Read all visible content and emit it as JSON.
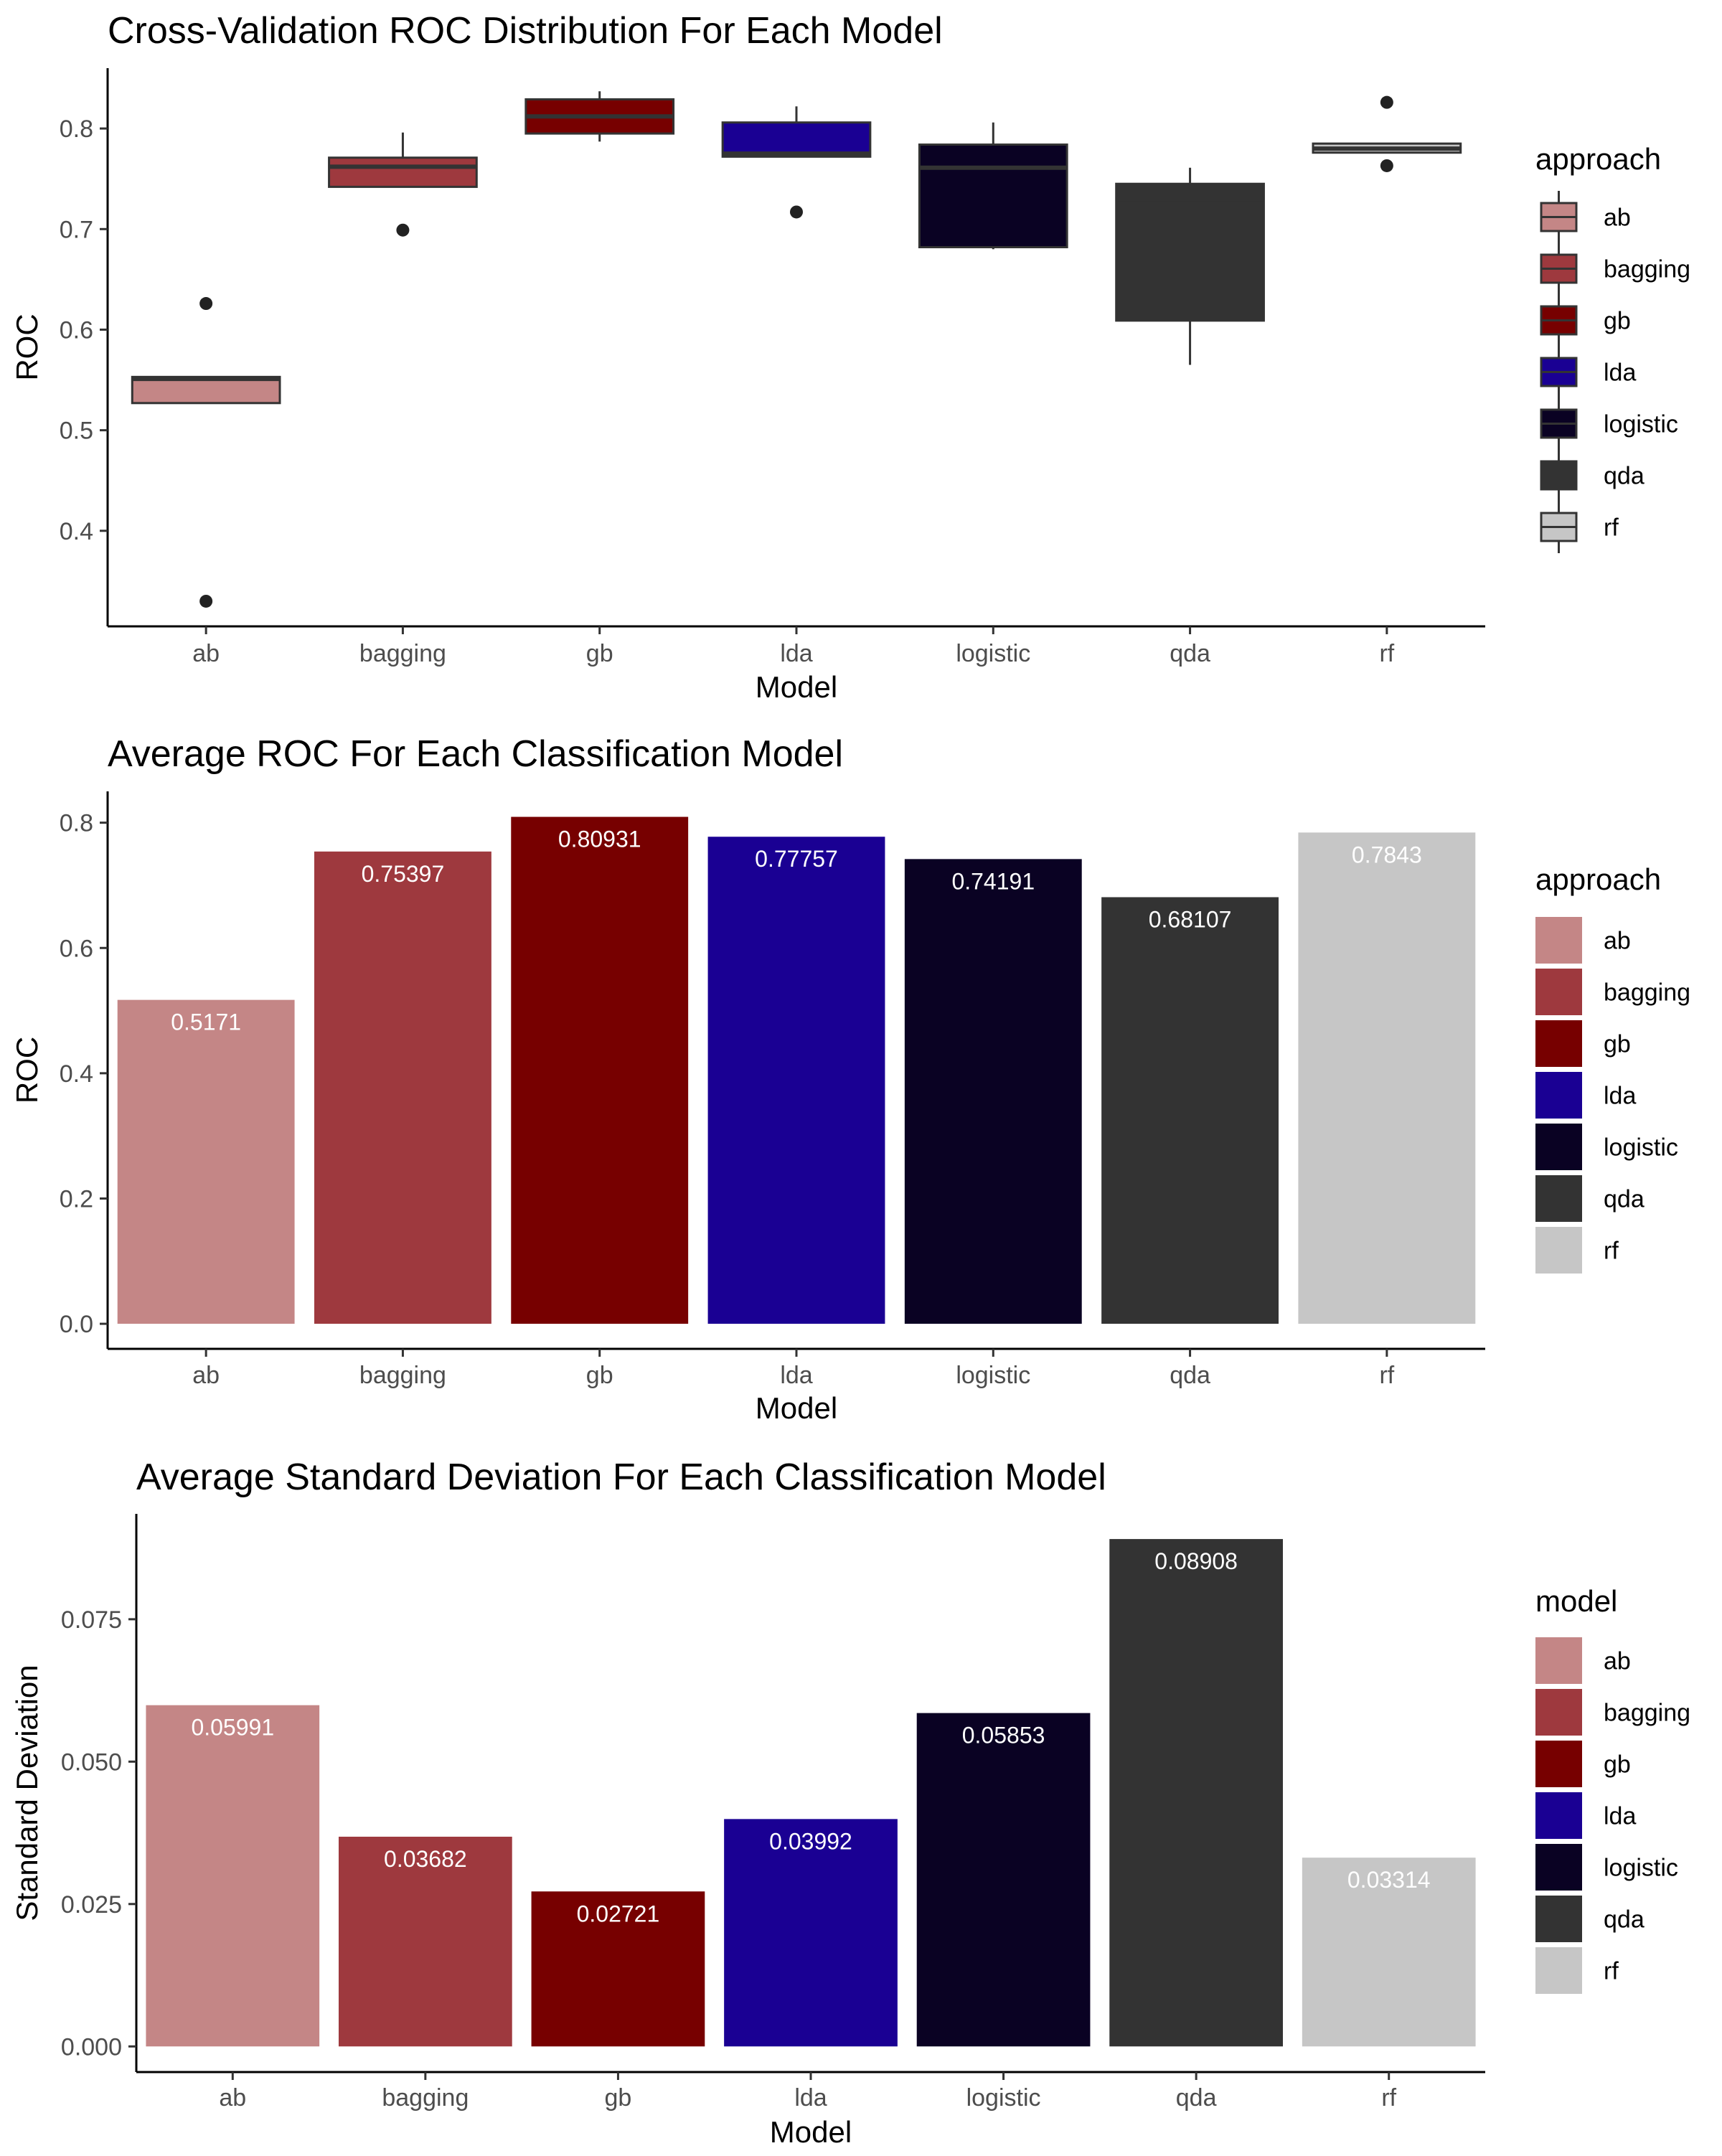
{
  "colors": {
    "ab": "#c48686",
    "bagging": "#9e393e",
    "gb": "#770000",
    "lda": "#1a0093",
    "logistic": "#0a0223",
    "qda": "#333333",
    "rf": "#c6c6c6"
  },
  "chart_data": [
    {
      "type": "box",
      "title": "Cross-Validation ROC Distribution For Each Model",
      "xlabel": "Model",
      "ylabel": "ROC",
      "legend_title": "approach",
      "legend_position": "right",
      "grid": false,
      "ylim": [
        0.305,
        0.86
      ],
      "yticks": [
        0.4,
        0.5,
        0.6,
        0.7,
        0.8
      ],
      "ytick_labels": [
        "0.4",
        "0.5",
        "0.6",
        "0.7",
        "0.8"
      ],
      "categories": [
        "ab",
        "bagging",
        "gb",
        "lda",
        "logistic",
        "qda",
        "rf"
      ],
      "boxes": [
        {
          "name": "ab",
          "whisker_low": 0.527,
          "q1": 0.527,
          "median": 0.551,
          "q3": 0.553,
          "whisker_high": 0.553,
          "outliers": [
            0.626,
            0.33
          ]
        },
        {
          "name": "bagging",
          "whisker_low": 0.742,
          "q1": 0.742,
          "median": 0.762,
          "q3": 0.771,
          "whisker_high": 0.796,
          "outliers": [
            0.699
          ]
        },
        {
          "name": "gb",
          "whisker_low": 0.787,
          "q1": 0.795,
          "median": 0.812,
          "q3": 0.829,
          "whisker_high": 0.837,
          "outliers": []
        },
        {
          "name": "lda",
          "whisker_low": 0.772,
          "q1": 0.772,
          "median": 0.775,
          "q3": 0.806,
          "whisker_high": 0.822,
          "outliers": [
            0.717
          ]
        },
        {
          "name": "logistic",
          "whisker_low": 0.68,
          "q1": 0.682,
          "median": 0.761,
          "q3": 0.784,
          "whisker_high": 0.806,
          "outliers": []
        },
        {
          "name": "qda",
          "whisker_low": 0.565,
          "q1": 0.609,
          "median": 0.73,
          "q3": 0.745,
          "whisker_high": 0.761,
          "outliers": []
        },
        {
          "name": "rf",
          "whisker_low": 0.776,
          "q1": 0.776,
          "median": 0.78,
          "q3": 0.785,
          "whisker_high": 0.785,
          "outliers": [
            0.826,
            0.763
          ]
        }
      ]
    },
    {
      "type": "bar",
      "title": "Average ROC For Each Classification Model",
      "xlabel": "Model",
      "ylabel": "ROC",
      "legend_title": "approach",
      "legend_position": "right",
      "grid": false,
      "ylim": [
        -0.04,
        0.85
      ],
      "yticks": [
        0.0,
        0.2,
        0.4,
        0.6,
        0.8
      ],
      "ytick_labels": [
        "0.0",
        "0.2",
        "0.4",
        "0.6",
        "0.8"
      ],
      "categories": [
        "ab",
        "bagging",
        "gb",
        "lda",
        "logistic",
        "qda",
        "rf"
      ],
      "values": [
        0.5171,
        0.75397,
        0.80931,
        0.77757,
        0.74191,
        0.68107,
        0.7843
      ],
      "value_labels": [
        "0.5171",
        "0.75397",
        "0.80931",
        "0.77757",
        "0.74191",
        "0.68107",
        "0.7843"
      ]
    },
    {
      "type": "bar",
      "title": "Average Standard Deviation For Each Classification Model",
      "xlabel": "Model",
      "ylabel": "Standard Deviation",
      "legend_title": "model",
      "legend_position": "right",
      "grid": false,
      "ylim": [
        -0.0045,
        0.0935
      ],
      "yticks": [
        0.0,
        0.025,
        0.05,
        0.075
      ],
      "ytick_labels": [
        "0.000",
        "0.025",
        "0.050",
        "0.075"
      ],
      "categories": [
        "ab",
        "bagging",
        "gb",
        "lda",
        "logistic",
        "qda",
        "rf"
      ],
      "values": [
        0.05991,
        0.03682,
        0.02721,
        0.03992,
        0.05853,
        0.08908,
        0.03314
      ],
      "value_labels": [
        "0.05991",
        "0.03682",
        "0.02721",
        "0.03992",
        "0.05853",
        "0.08908",
        "0.03314"
      ]
    }
  ]
}
